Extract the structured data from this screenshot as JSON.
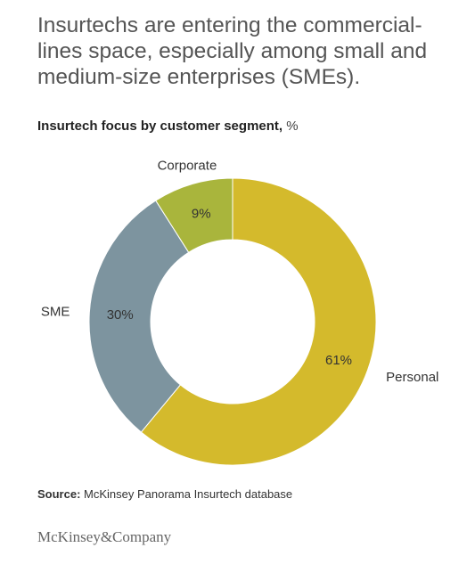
{
  "headline": "Insurtechs are entering the commercial-lines space, especially among small and medium-size enterprises (SMEs).",
  "chart_data": {
    "type": "pie",
    "title": "Insurtech focus by customer segment,",
    "unit": "%",
    "donut": true,
    "categories": [
      "Personal",
      "SME",
      "Corporate"
    ],
    "values": [
      61,
      30,
      9
    ],
    "value_labels": [
      "61%",
      "30%",
      "9%"
    ],
    "colors": [
      "#D4BA2C",
      "#7D949F",
      "#A9B53C"
    ],
    "legend": "none"
  },
  "source": {
    "label": "Source:",
    "text": " McKinsey Panorama Insurtech database"
  },
  "logo": "McKinsey&Company"
}
